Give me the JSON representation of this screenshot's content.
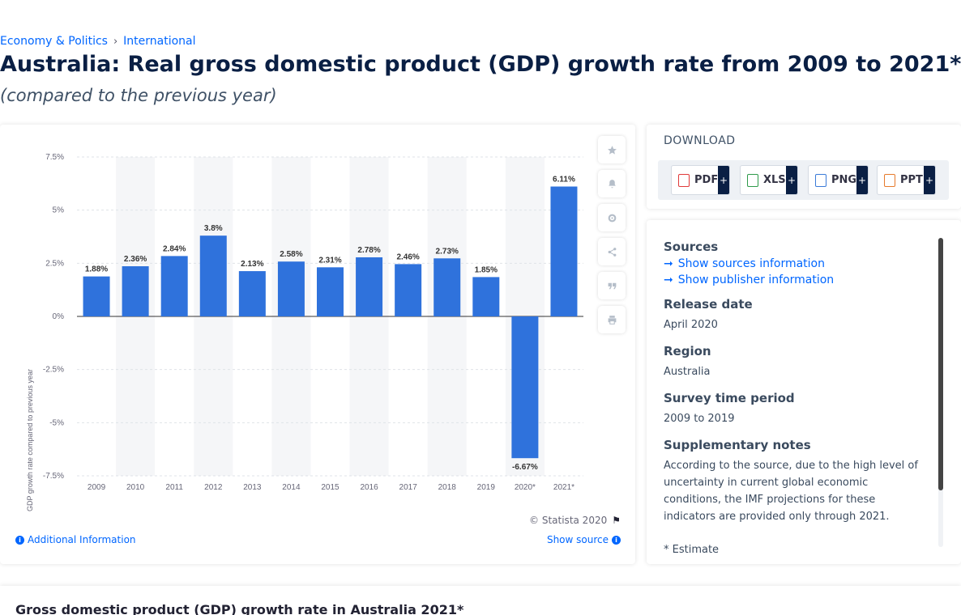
{
  "breadcrumb": {
    "items": [
      "Economy & Politics",
      "International"
    ],
    "separator": "›"
  },
  "header": {
    "title": "Australia: Real gross domestic product (GDP) growth rate from 2009 to 2021*",
    "subtitle": "(compared to the previous year)"
  },
  "chart_data": {
    "type": "bar",
    "categories": [
      "2009",
      "2010",
      "2011",
      "2012",
      "2013",
      "2014",
      "2015",
      "2016",
      "2017",
      "2018",
      "2019",
      "2020*",
      "2021*"
    ],
    "values": [
      1.88,
      2.36,
      2.84,
      3.8,
      2.13,
      2.58,
      2.31,
      2.78,
      2.46,
      2.73,
      1.85,
      -6.67,
      6.11
    ],
    "data_labels": [
      "1.88%",
      "2.36%",
      "2.84%",
      "3.8%",
      "2.13%",
      "2.58%",
      "2.31%",
      "2.78%",
      "2.46%",
      "2.73%",
      "1.85%",
      "-6.67%",
      "6.11%"
    ],
    "ylabel": "GDP growth rate compared to previous year",
    "xlabel": "",
    "ylim": [
      -7.5,
      7.5
    ],
    "yticks": [
      7.5,
      5,
      2.5,
      0,
      -2.5,
      -5,
      -7.5
    ],
    "ytick_labels": [
      "7.5%",
      "5%",
      "2.5%",
      "0%",
      "-2.5%",
      "-5%",
      "-7.5%"
    ],
    "grid": true,
    "bar_color": "#2f72dc",
    "band_color": "#f5f6f8"
  },
  "chart_footer": {
    "copyright": "© Statista 2020",
    "additional_info": "Additional Information",
    "show_source": "Show source"
  },
  "toolbar": {
    "icons": [
      "star-icon",
      "bell-icon",
      "gear-icon",
      "share-icon",
      "quote-icon",
      "print-icon"
    ]
  },
  "download": {
    "title": "DOWNLOAD",
    "formats": [
      "PDF",
      "XLS",
      "PNG",
      "PPT"
    ],
    "plus": "+",
    "colors": {
      "pdf": "#e03a3a",
      "xls": "#2e9a4a",
      "png": "#3b7bd8",
      "ppt": "#e67a2c"
    }
  },
  "meta": {
    "sources_heading": "Sources",
    "show_sources": "Show sources information",
    "show_publisher": "Show publisher information",
    "release_heading": "Release date",
    "release_value": "April 2020",
    "region_heading": "Region",
    "region_value": "Australia",
    "survey_heading": "Survey time period",
    "survey_value": "2009 to 2019",
    "notes_heading": "Supplementary notes",
    "notes_value": "According to the source, due to the high level of uncertainty in current global economic conditions, the IMF projections for these indicators are provided only through 2021.",
    "notes_extra": "* Estimate"
  },
  "bottom": {
    "title": "Gross domestic product (GDP) growth rate in Australia 2021*"
  }
}
